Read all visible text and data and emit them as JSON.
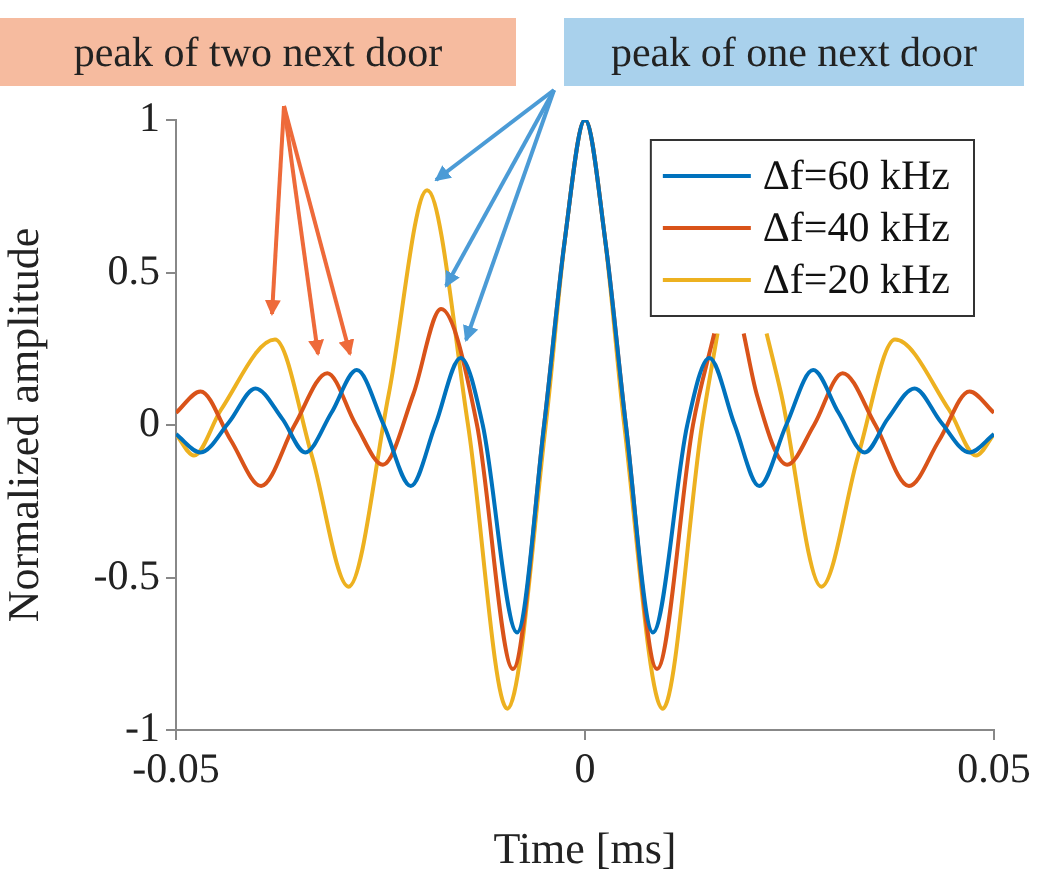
{
  "chart_data": {
    "type": "line",
    "xlabel": "Time [ms]",
    "ylabel": "Normalized amplitude",
    "annotations": [
      "peak of two next door",
      "peak of one next door"
    ],
    "xlim": [
      -0.05,
      0.05
    ],
    "xticks": [
      -0.05,
      0,
      0.05
    ],
    "ylim": [
      -1,
      1
    ],
    "yticks": [
      -1,
      -0.5,
      0,
      0.5,
      1
    ],
    "grid": false,
    "legend": "top right",
    "marker": "none",
    "line_style": "solid",
    "series": [
      {
        "name": "Δf=60 kHz",
        "color": "#0072bd",
        "x": [
          -0.05,
          -0.047,
          -0.0435,
          -0.0403,
          -0.037,
          -0.0342,
          -0.031,
          -0.0279,
          -0.0246,
          -0.0213,
          -0.0183,
          -0.0152,
          -0.0125,
          -0.0083,
          -0.005,
          -0.0025,
          0,
          0.0025,
          0.005,
          0.0083,
          0.0125,
          0.0152,
          0.0183,
          0.0213,
          0.0246,
          0.0279,
          0.031,
          0.0342,
          0.037,
          0.0403,
          0.0435,
          0.047,
          0.05
        ],
        "values": [
          -0.03,
          -0.09,
          0.01,
          0.12,
          0.02,
          -0.09,
          0.04,
          0.18,
          0,
          -0.2,
          0,
          0.22,
          0,
          -0.68,
          0,
          0.6,
          1,
          0.6,
          0,
          -0.68,
          0,
          0.22,
          0,
          -0.2,
          0,
          0.18,
          0.04,
          -0.09,
          0.02,
          0.12,
          0.01,
          -0.09,
          -0.03
        ]
      },
      {
        "name": "Δf=40 kHz",
        "color": "#d95319",
        "x": [
          -0.05,
          -0.047,
          -0.0433,
          -0.0396,
          -0.0355,
          -0.0315,
          -0.028,
          -0.0247,
          -0.021,
          -0.0176,
          -0.0132,
          -0.0088,
          -0.005,
          -0.0025,
          0,
          0.0025,
          0.005,
          0.0088,
          0.0132,
          0.0158,
          0.0176,
          0.0194,
          0.021,
          0.0247,
          0.028,
          0.0315,
          0.0355,
          0.0396,
          0.0433,
          0.047,
          0.05
        ],
        "values": [
          0.04,
          0.11,
          -0.05,
          -0.2,
          0,
          0.17,
          0,
          -0.13,
          0.1,
          0.38,
          0,
          -0.8,
          0,
          0.6,
          1,
          0.6,
          0,
          -0.8,
          0,
          0.3,
          null,
          0.3,
          0.1,
          -0.13,
          0,
          0.17,
          0,
          -0.2,
          -0.05,
          0.11,
          0.04
        ]
      },
      {
        "name": "Δf=20 kHz",
        "color": "#edb120",
        "x": [
          -0.05,
          -0.0478,
          -0.0445,
          -0.0379,
          -0.0334,
          -0.0289,
          -0.024,
          -0.0193,
          -0.0143,
          -0.0095,
          -0.0048,
          -0.0024,
          0,
          0.0024,
          0.0048,
          0.0095,
          0.0143,
          0.0162,
          0.0193,
          0.0222,
          0.024,
          0.0289,
          0.0334,
          0.0379,
          0.0445,
          0.0478,
          0.05
        ],
        "values": [
          -0.03,
          -0.1,
          0.05,
          0.28,
          -0.1,
          -0.53,
          0.1,
          0.77,
          0,
          -0.93,
          0,
          0.62,
          1,
          0.62,
          0,
          -0.93,
          0,
          0.3,
          null,
          0.3,
          0.1,
          -0.53,
          -0.1,
          0.28,
          0.05,
          -0.1,
          -0.03
        ]
      }
    ]
  }
}
